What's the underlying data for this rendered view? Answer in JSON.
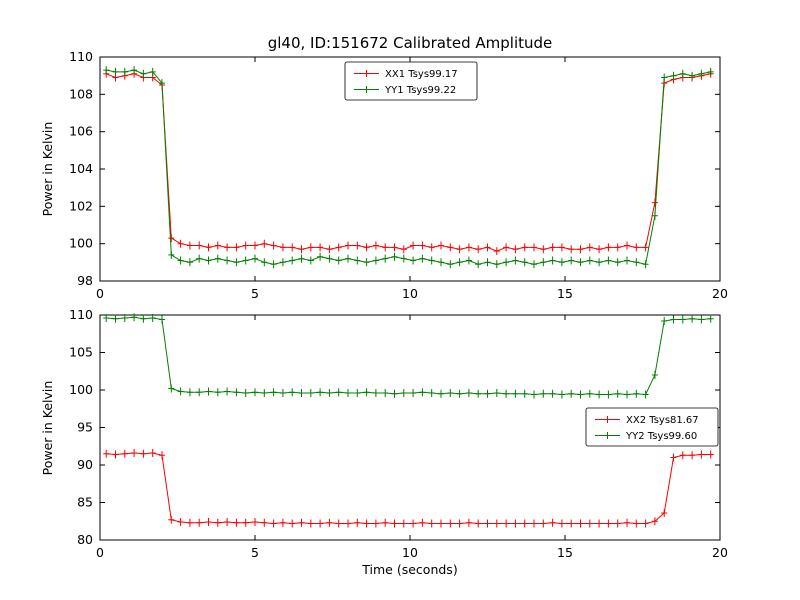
{
  "chart_data": [
    {
      "type": "line",
      "title": "gl40, ID:151672 Calibrated Amplitude",
      "ylabel": "Power in Kelvin",
      "xlabel": "",
      "xlim": [
        0,
        20
      ],
      "ylim": [
        98,
        110
      ],
      "xticks": [
        0,
        5,
        10,
        15,
        20
      ],
      "yticks": [
        98,
        100,
        102,
        104,
        106,
        108,
        110
      ],
      "grid": false,
      "legend_position": "upper center",
      "x": [
        0.2,
        0.5,
        0.8,
        1.1,
        1.4,
        1.7,
        2.0,
        2.3,
        2.6,
        2.9,
        3.2,
        3.5,
        3.8,
        4.1,
        4.4,
        4.7,
        5.0,
        5.3,
        5.6,
        5.9,
        6.2,
        6.5,
        6.8,
        7.1,
        7.4,
        7.7,
        8.0,
        8.3,
        8.6,
        8.9,
        9.2,
        9.5,
        9.8,
        10.1,
        10.4,
        10.7,
        11.0,
        11.3,
        11.6,
        11.9,
        12.2,
        12.5,
        12.8,
        13.1,
        13.4,
        13.7,
        14.0,
        14.3,
        14.6,
        14.9,
        15.2,
        15.5,
        15.8,
        16.1,
        16.4,
        16.7,
        17.0,
        17.3,
        17.6,
        17.9,
        18.2,
        18.5,
        18.8,
        19.1,
        19.4,
        19.7
      ],
      "series": [
        {
          "name": "XX1 Tsys99.17",
          "color": "#ff0000",
          "values": [
            109.1,
            108.9,
            109.0,
            109.1,
            108.9,
            108.9,
            108.5,
            100.3,
            100.0,
            99.9,
            99.9,
            99.8,
            99.9,
            99.8,
            99.8,
            99.9,
            99.9,
            100.0,
            99.9,
            99.8,
            99.8,
            99.7,
            99.8,
            99.8,
            99.7,
            99.8,
            99.9,
            99.9,
            99.8,
            99.9,
            99.8,
            99.8,
            99.7,
            99.9,
            99.9,
            99.8,
            99.9,
            99.8,
            99.7,
            99.8,
            99.7,
            99.8,
            99.6,
            99.8,
            99.7,
            99.8,
            99.8,
            99.7,
            99.8,
            99.8,
            99.7,
            99.7,
            99.8,
            99.7,
            99.8,
            99.8,
            99.9,
            99.8,
            99.8,
            102.2,
            108.6,
            108.8,
            108.9,
            108.9,
            109.0,
            109.1
          ]
        },
        {
          "name": "YY1 Tsys99.22",
          "color": "#008000",
          "values": [
            109.3,
            109.2,
            109.2,
            109.3,
            109.1,
            109.2,
            108.6,
            99.4,
            99.1,
            99.0,
            99.2,
            99.1,
            99.2,
            99.1,
            99.0,
            99.1,
            99.2,
            99.0,
            98.9,
            99.0,
            99.1,
            99.2,
            99.1,
            99.3,
            99.2,
            99.1,
            99.2,
            99.1,
            99.0,
            99.1,
            99.2,
            99.3,
            99.2,
            99.1,
            99.2,
            99.1,
            99.0,
            98.9,
            99.0,
            99.1,
            98.9,
            99.0,
            98.9,
            99.0,
            99.1,
            99.0,
            98.9,
            99.0,
            99.1,
            99.0,
            99.1,
            99.0,
            99.1,
            99.0,
            99.1,
            99.0,
            99.1,
            99.0,
            98.9,
            101.5,
            108.9,
            109.0,
            109.1,
            109.0,
            109.1,
            109.2
          ]
        }
      ]
    },
    {
      "type": "line",
      "title": "",
      "ylabel": "Power in Kelvin",
      "xlabel": "Time (seconds)",
      "xlim": [
        0,
        20
      ],
      "ylim": [
        80,
        110
      ],
      "xticks": [
        0,
        5,
        10,
        15,
        20
      ],
      "yticks": [
        80,
        85,
        90,
        95,
        100,
        105,
        110
      ],
      "grid": false,
      "legend_position": "center right",
      "x": [
        0.2,
        0.5,
        0.8,
        1.1,
        1.4,
        1.7,
        2.0,
        2.3,
        2.6,
        2.9,
        3.2,
        3.5,
        3.8,
        4.1,
        4.4,
        4.7,
        5.0,
        5.3,
        5.6,
        5.9,
        6.2,
        6.5,
        6.8,
        7.1,
        7.4,
        7.7,
        8.0,
        8.3,
        8.6,
        8.9,
        9.2,
        9.5,
        9.8,
        10.1,
        10.4,
        10.7,
        11.0,
        11.3,
        11.6,
        11.9,
        12.2,
        12.5,
        12.8,
        13.1,
        13.4,
        13.7,
        14.0,
        14.3,
        14.6,
        14.9,
        15.2,
        15.5,
        15.8,
        16.1,
        16.4,
        16.7,
        17.0,
        17.3,
        17.6,
        17.9,
        18.2,
        18.5,
        18.8,
        19.1,
        19.4,
        19.7
      ],
      "series": [
        {
          "name": "XX2 Tsys81.67",
          "color": "#ff0000",
          "values": [
            91.5,
            91.4,
            91.5,
            91.6,
            91.5,
            91.6,
            91.3,
            82.7,
            82.4,
            82.3,
            82.3,
            82.4,
            82.3,
            82.4,
            82.3,
            82.3,
            82.4,
            82.3,
            82.2,
            82.3,
            82.2,
            82.3,
            82.2,
            82.2,
            82.3,
            82.2,
            82.2,
            82.3,
            82.2,
            82.2,
            82.3,
            82.2,
            82.2,
            82.2,
            82.3,
            82.2,
            82.2,
            82.2,
            82.2,
            82.3,
            82.2,
            82.2,
            82.2,
            82.2,
            82.2,
            82.2,
            82.2,
            82.2,
            82.3,
            82.2,
            82.2,
            82.2,
            82.2,
            82.2,
            82.2,
            82.2,
            82.3,
            82.2,
            82.2,
            82.5,
            83.6,
            91.0,
            91.3,
            91.3,
            91.4,
            91.4
          ]
        },
        {
          "name": "YY2 Tsys99.60",
          "color": "#008000",
          "values": [
            109.6,
            109.5,
            109.6,
            109.7,
            109.5,
            109.6,
            109.4,
            100.2,
            99.8,
            99.7,
            99.7,
            99.8,
            99.7,
            99.8,
            99.7,
            99.6,
            99.7,
            99.6,
            99.7,
            99.6,
            99.7,
            99.6,
            99.6,
            99.7,
            99.6,
            99.7,
            99.6,
            99.6,
            99.7,
            99.6,
            99.6,
            99.5,
            99.6,
            99.6,
            99.7,
            99.6,
            99.5,
            99.6,
            99.5,
            99.6,
            99.5,
            99.5,
            99.6,
            99.5,
            99.5,
            99.5,
            99.4,
            99.5,
            99.5,
            99.4,
            99.5,
            99.4,
            99.5,
            99.4,
            99.4,
            99.5,
            99.4,
            99.5,
            99.4,
            102.0,
            109.2,
            109.4,
            109.4,
            109.5,
            109.4,
            109.5
          ]
        }
      ]
    }
  ]
}
